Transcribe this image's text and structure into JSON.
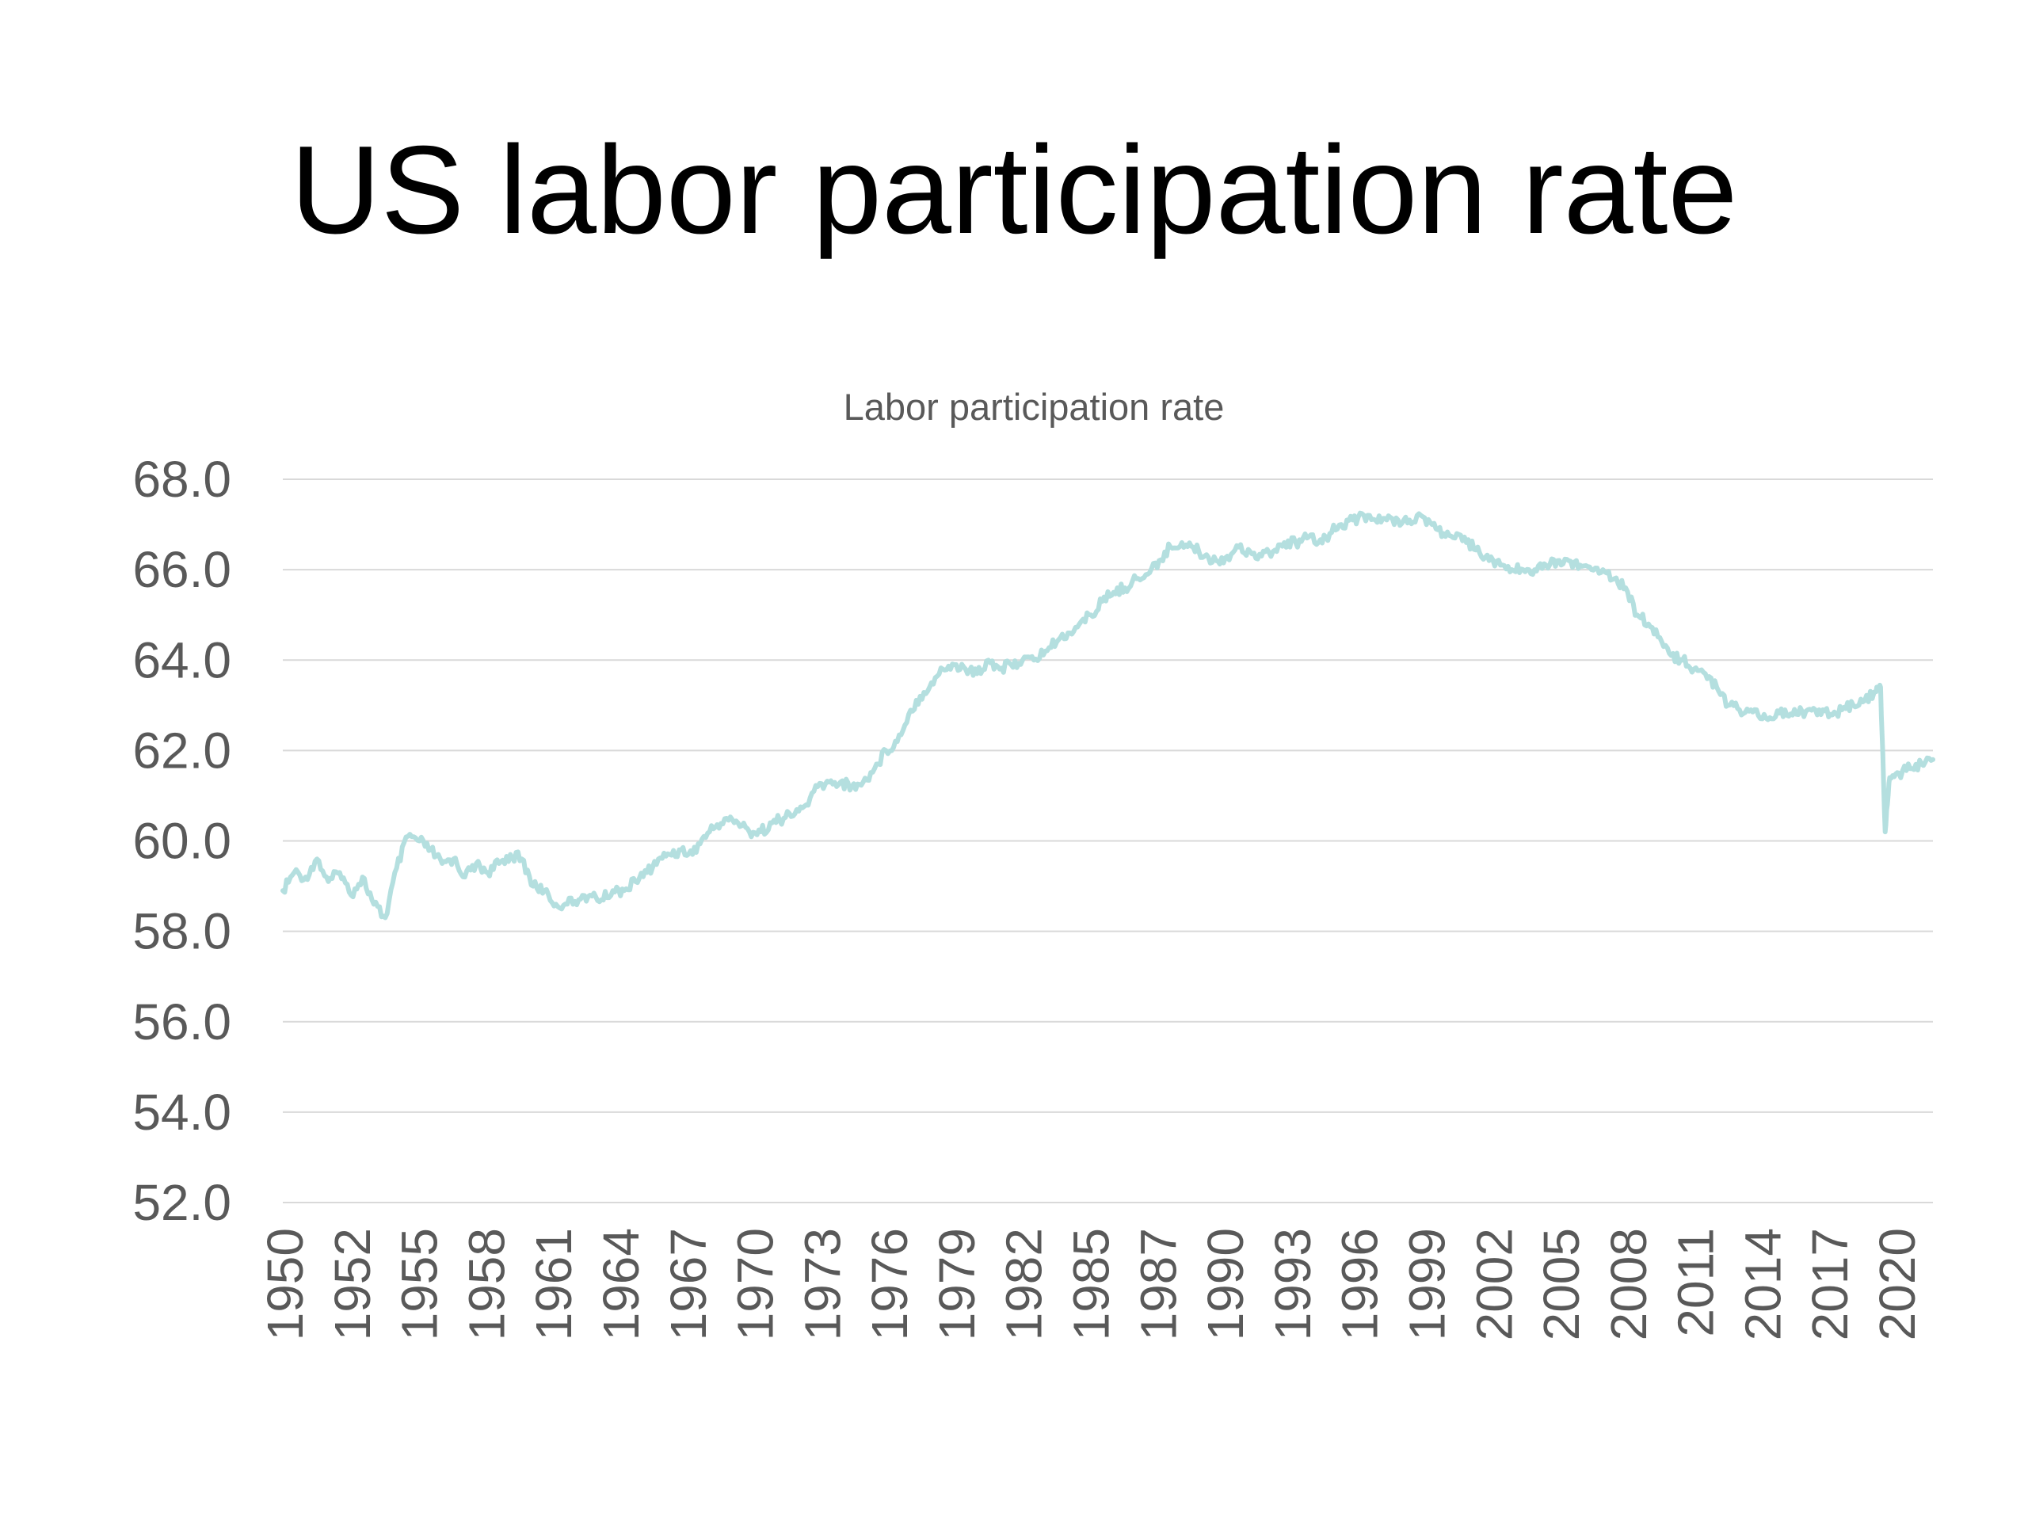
{
  "slide": {
    "title": "US labor participation rate"
  },
  "colors": {
    "series": "#b4dfdf",
    "gridline": "#d9d9d9",
    "tick_text": "#595959"
  },
  "chart_data": {
    "type": "line",
    "title": "Labor participation rate",
    "xlabel": "",
    "ylabel": "",
    "ylim": [
      52,
      68
    ],
    "y_ticks": [
      "68.0",
      "66.0",
      "64.0",
      "62.0",
      "60.0",
      "58.0",
      "56.0",
      "54.0",
      "52.0"
    ],
    "x_ticks": [
      "1950",
      "1952",
      "1955",
      "1958",
      "1961",
      "1964",
      "1967",
      "1970",
      "1973",
      "1976",
      "1979",
      "1982",
      "1985",
      "1987",
      "1990",
      "1993",
      "1996",
      "1999",
      "2002",
      "2005",
      "2008",
      "2011",
      "2014",
      "2017",
      "2020"
    ],
    "x_range": [
      1950.0,
      2022.5
    ],
    "grid": true,
    "legend": "none",
    "series": [
      {
        "x": [
          1950.0,
          1950.5,
          1951.0,
          1951.5,
          1952.0,
          1952.5,
          1953.0,
          1953.5,
          1954.0,
          1954.5,
          1955.0,
          1955.5,
          1956.0,
          1956.5,
          1957.0,
          1957.5,
          1958.0,
          1958.5,
          1959.0,
          1959.5,
          1960.0,
          1960.5,
          1961.0,
          1961.5,
          1962.0,
          1962.5,
          1963.0,
          1963.5,
          1964.0,
          1964.5,
          1965.0,
          1965.5,
          1966.0,
          1966.5,
          1967.0,
          1967.5,
          1968.0,
          1968.5,
          1969.0,
          1969.5,
          1970.0,
          1970.5,
          1971.0,
          1971.5,
          1972.0,
          1972.5,
          1973.0,
          1973.5,
          1974.0,
          1974.5,
          1975.0,
          1975.5,
          1976.0,
          1976.5,
          1977.0,
          1977.5,
          1978.0,
          1978.5,
          1979.0,
          1979.5,
          1980.0,
          1980.5,
          1981.0,
          1981.5,
          1982.0,
          1982.5,
          1983.0,
          1983.5,
          1984.0,
          1984.5,
          1985.0,
          1985.5,
          1986.0,
          1986.5,
          1987.0,
          1987.5,
          1988.0,
          1988.5,
          1989.0,
          1989.5,
          1990.0,
          1990.5,
          1991.0,
          1991.5,
          1992.0,
          1992.5,
          1993.0,
          1993.5,
          1994.0,
          1994.5,
          1995.0,
          1995.5,
          1996.0,
          1996.5,
          1997.0,
          1997.5,
          1998.0,
          1998.5,
          1999.0,
          1999.5,
          2000.0,
          2000.5,
          2001.0,
          2001.5,
          2002.0,
          2002.5,
          2003.0,
          2003.5,
          2004.0,
          2004.5,
          2005.0,
          2005.5,
          2006.0,
          2006.5,
          2007.0,
          2007.5,
          2008.0,
          2008.5,
          2009.0,
          2009.5,
          2010.0,
          2010.5,
          2011.0,
          2011.5,
          2012.0,
          2012.5,
          2013.0,
          2013.5,
          2014.0,
          2014.5,
          2015.0,
          2015.5,
          2016.0,
          2016.5,
          2017.0,
          2017.5,
          2018.0,
          2018.5,
          2019.0,
          2019.5,
          2020.0,
          2020.2,
          2020.4,
          2020.6,
          2021.0,
          2021.5,
          2022.0,
          2022.5
        ],
        "values": [
          58.9,
          59.3,
          59.2,
          59.6,
          59.1,
          59.3,
          58.8,
          59.2,
          58.6,
          58.3,
          59.4,
          60.1,
          60.0,
          59.8,
          59.5,
          59.6,
          59.2,
          59.5,
          59.3,
          59.5,
          59.7,
          59.6,
          59.0,
          58.9,
          58.6,
          58.6,
          58.7,
          58.8,
          58.7,
          58.9,
          58.9,
          59.1,
          59.3,
          59.6,
          59.7,
          59.8,
          59.7,
          60.1,
          60.3,
          60.5,
          60.4,
          60.2,
          60.2,
          60.4,
          60.5,
          60.6,
          60.8,
          61.2,
          61.3,
          61.3,
          61.2,
          61.3,
          61.6,
          62.0,
          62.2,
          62.8,
          63.2,
          63.5,
          63.8,
          63.9,
          63.8,
          63.7,
          64.0,
          63.8,
          63.9,
          64.0,
          64.0,
          64.2,
          64.4,
          64.6,
          64.8,
          65.0,
          65.3,
          65.5,
          65.6,
          65.8,
          65.9,
          66.2,
          66.5,
          66.6,
          66.5,
          66.3,
          66.2,
          66.3,
          66.5,
          66.4,
          66.3,
          66.4,
          66.6,
          66.6,
          66.7,
          66.6,
          66.8,
          67.0,
          67.1,
          67.2,
          67.1,
          67.1,
          67.1,
          67.1,
          67.2,
          67.0,
          66.8,
          66.7,
          66.6,
          66.5,
          66.2,
          66.1,
          66.0,
          66.0,
          66.0,
          66.1,
          66.2,
          66.2,
          66.1,
          66.0,
          66.0,
          65.8,
          65.6,
          65.0,
          64.8,
          64.5,
          64.1,
          64.0,
          63.8,
          63.7,
          63.4,
          63.0,
          62.9,
          62.9,
          62.7,
          62.7,
          62.9,
          62.8,
          62.9,
          62.9,
          62.8,
          62.9,
          63.0,
          63.1,
          63.3,
          63.4,
          60.2,
          61.4,
          61.5,
          61.6,
          61.7,
          61.8
        ]
      }
    ]
  }
}
